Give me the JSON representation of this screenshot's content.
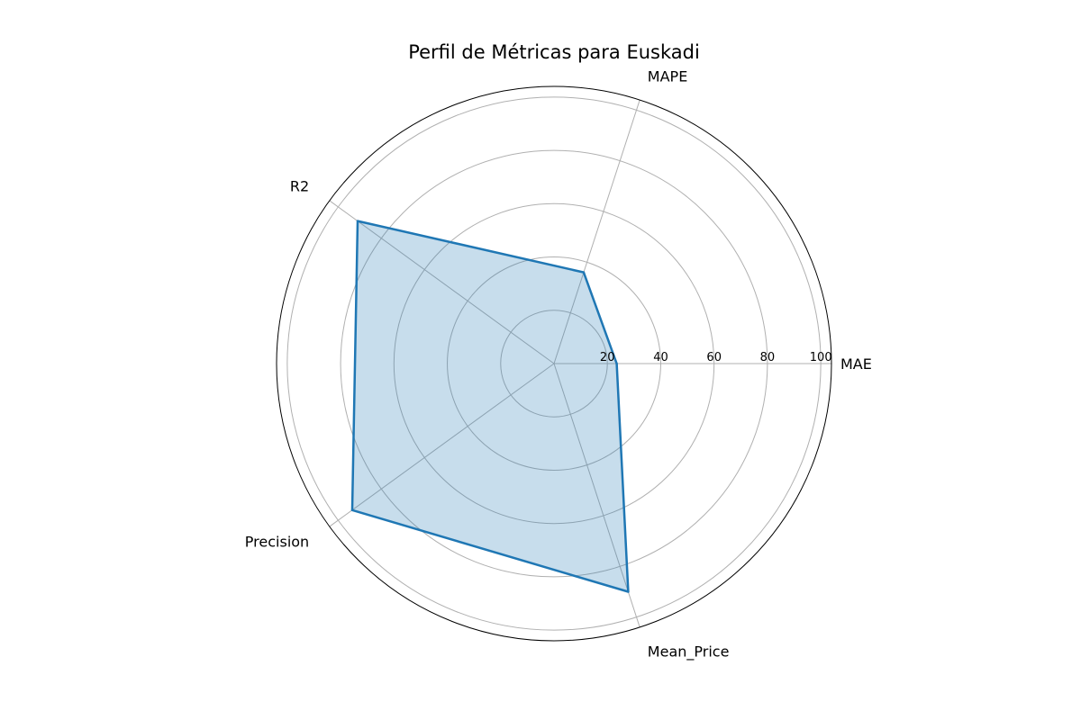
{
  "chart_data": {
    "type": "radar",
    "title": "Perfil de Métricas para Euskadi",
    "axes": [
      "MAE",
      "MAPE",
      "R2",
      "Precision",
      "Mean_Price"
    ],
    "radial_ticks": [
      "20",
      "40",
      "60",
      "80",
      "100"
    ],
    "rlim": [
      0,
      104
    ],
    "grid": true,
    "series": [
      {
        "values": [
          23.5,
          36,
          91,
          93.5,
          90
        ]
      }
    ],
    "colors": {
      "series": "#1f77b4",
      "grid": "#b0b0b0"
    }
  }
}
